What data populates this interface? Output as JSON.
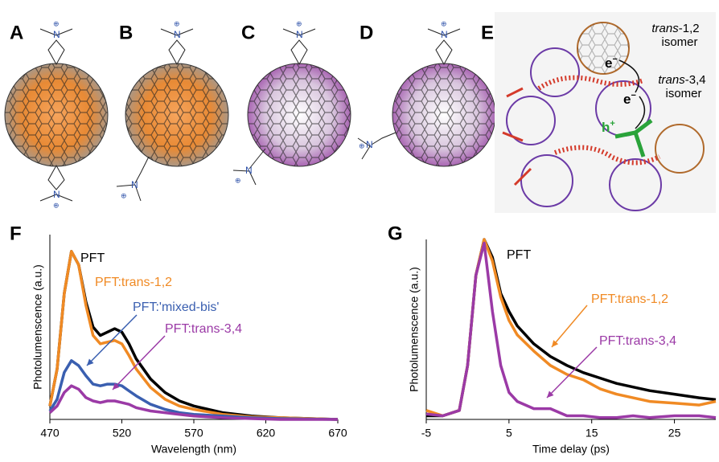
{
  "panels": {
    "a": "A",
    "b": "B",
    "c": "C",
    "d": "D",
    "e": "E",
    "f": "F",
    "g": "G"
  },
  "molecule": {
    "nitrogen": "N",
    "charge": "⊕"
  },
  "panel_e": {
    "trans12": "trans",
    "trans12_rest": "-1,2",
    "isomer": "isomer",
    "trans34": "trans",
    "trans34_rest": "-3,4",
    "electron": "e",
    "electron_sup": "−",
    "hole": "h",
    "hole_sup": "+"
  },
  "chart_data": [
    {
      "type": "line",
      "xlabel": "Wavelength (nm)",
      "ylabel": "Photolumenscence (a.u.)",
      "x": [
        470,
        475,
        480,
        485,
        490,
        495,
        500,
        505,
        510,
        515,
        520,
        525,
        530,
        540,
        550,
        560,
        570,
        590,
        610,
        630,
        670
      ],
      "xlim": [
        470,
        670
      ],
      "xticks": [
        470,
        520,
        570,
        620,
        670
      ],
      "ylim": [
        0,
        1.1
      ],
      "series": [
        {
          "name": "PFT",
          "color": "#000000",
          "values": [
            0.08,
            0.3,
            0.75,
            1.0,
            0.92,
            0.7,
            0.55,
            0.5,
            0.52,
            0.54,
            0.52,
            0.45,
            0.36,
            0.24,
            0.16,
            0.11,
            0.08,
            0.04,
            0.02,
            0.01,
            0
          ]
        },
        {
          "name": "PFT:trans-1,2",
          "color": "#f08a24",
          "values": [
            0.08,
            0.3,
            0.75,
            1.0,
            0.92,
            0.68,
            0.5,
            0.45,
            0.46,
            0.47,
            0.45,
            0.38,
            0.3,
            0.19,
            0.12,
            0.08,
            0.06,
            0.03,
            0.015,
            0.01,
            0
          ]
        },
        {
          "name": "PFT:'mixed-bis'",
          "color": "#3a5fb0",
          "values": [
            0.05,
            0.12,
            0.28,
            0.35,
            0.32,
            0.26,
            0.21,
            0.2,
            0.21,
            0.21,
            0.2,
            0.17,
            0.14,
            0.09,
            0.06,
            0.04,
            0.03,
            0.02,
            0.01,
            0.005,
            0
          ]
        },
        {
          "name": "PFT:trans-3,4",
          "color": "#9b3aa6",
          "values": [
            0.04,
            0.08,
            0.16,
            0.2,
            0.18,
            0.13,
            0.11,
            0.1,
            0.11,
            0.11,
            0.1,
            0.09,
            0.07,
            0.05,
            0.04,
            0.03,
            0.02,
            0.01,
            0.005,
            0,
            0
          ]
        }
      ]
    },
    {
      "type": "line",
      "xlabel": "Time delay (ps)",
      "ylabel": "Photolumenscence (a.u.)",
      "x": [
        -5,
        -3,
        -1,
        0,
        1,
        2,
        3,
        4,
        5,
        6,
        8,
        10,
        12,
        14,
        16,
        18,
        20,
        22,
        25,
        28,
        30
      ],
      "xlim": [
        -5,
        30
      ],
      "xticks": [
        -5,
        5,
        15,
        25
      ],
      "ylim": [
        0,
        1.0
      ],
      "series": [
        {
          "name": "PFT",
          "color": "#000000",
          "values": [
            0.02,
            0.02,
            0.05,
            0.3,
            0.8,
            1.0,
            0.9,
            0.7,
            0.6,
            0.52,
            0.42,
            0.35,
            0.3,
            0.26,
            0.23,
            0.2,
            0.18,
            0.16,
            0.14,
            0.12,
            0.11
          ]
        },
        {
          "name": "PFT:trans-1,2",
          "color": "#f08a24",
          "values": [
            0.05,
            0.02,
            0.05,
            0.3,
            0.8,
            1.0,
            0.88,
            0.68,
            0.55,
            0.47,
            0.38,
            0.3,
            0.25,
            0.22,
            0.17,
            0.14,
            0.12,
            0.1,
            0.09,
            0.08,
            0.1
          ]
        },
        {
          "name": "PFT:trans-3,4",
          "color": "#9b3aa6",
          "values": [
            0.03,
            0.02,
            0.05,
            0.3,
            0.8,
            0.98,
            0.6,
            0.3,
            0.15,
            0.1,
            0.06,
            0.06,
            0.02,
            0.02,
            0.01,
            0.01,
            0.02,
            0.01,
            0.02,
            0.02,
            0.01
          ]
        }
      ]
    }
  ]
}
